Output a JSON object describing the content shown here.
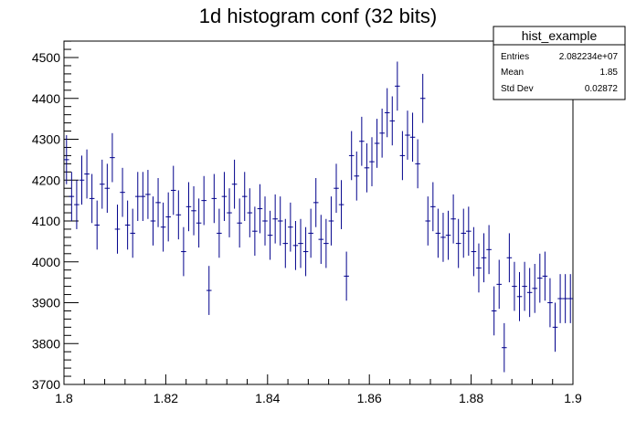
{
  "chart_data": {
    "type": "scatter",
    "title": "1d histogram conf (32 bits)",
    "xlabel": "",
    "ylabel": "",
    "xlim": [
      1.8,
      1.9
    ],
    "ylim": [
      3700,
      4550
    ],
    "x_ticks": [
      "1.8",
      "1.82",
      "1.84",
      "1.86",
      "1.88",
      "1.9"
    ],
    "y_ticks": [
      "3700",
      "3800",
      "3900",
      "4000",
      "4100",
      "4200",
      "4300",
      "4400",
      "4500"
    ],
    "grid": false,
    "legend": "none",
    "marker_color": "#00008b",
    "bin_width": 0.001,
    "error_half": 60,
    "x": [
      1.8005,
      1.8015,
      1.8025,
      1.8035,
      1.8045,
      1.8055,
      1.8065,
      1.8075,
      1.8085,
      1.8095,
      1.8105,
      1.8115,
      1.8125,
      1.8135,
      1.8145,
      1.8155,
      1.8165,
      1.8175,
      1.8185,
      1.8195,
      1.8205,
      1.8215,
      1.8225,
      1.8235,
      1.8245,
      1.8255,
      1.8265,
      1.8275,
      1.8285,
      1.8295,
      1.8305,
      1.8315,
      1.8325,
      1.8335,
      1.8345,
      1.8355,
      1.8365,
      1.8375,
      1.8385,
      1.8395,
      1.8405,
      1.8415,
      1.8425,
      1.8435,
      1.8445,
      1.8455,
      1.8465,
      1.8475,
      1.8485,
      1.8495,
      1.8505,
      1.8515,
      1.8525,
      1.8535,
      1.8545,
      1.8555,
      1.8565,
      1.8575,
      1.8585,
      1.8595,
      1.8605,
      1.8615,
      1.8625,
      1.8635,
      1.8645,
      1.8655,
      1.8665,
      1.8675,
      1.8685,
      1.8695,
      1.8705,
      1.8715,
      1.8725,
      1.8735,
      1.8745,
      1.8755,
      1.8765,
      1.8775,
      1.8785,
      1.8795,
      1.8805,
      1.8815,
      1.8825,
      1.8835,
      1.8845,
      1.8855,
      1.8865,
      1.8875,
      1.8885,
      1.8895,
      1.8905,
      1.8915,
      1.8925,
      1.8935,
      1.8945,
      1.8955,
      1.8965,
      1.8975,
      1.8985,
      1.8995
    ],
    "y": [
      4250,
      4160,
      4140,
      4200,
      4215,
      4155,
      4090,
      4190,
      4180,
      4255,
      4080,
      4170,
      4090,
      4070,
      4160,
      4160,
      4165,
      4100,
      4145,
      4085,
      4110,
      4175,
      4115,
      4025,
      4135,
      4125,
      4095,
      4150,
      3930,
      4155,
      4070,
      4160,
      4120,
      4190,
      4095,
      4160,
      4120,
      4075,
      4130,
      4100,
      4065,
      4105,
      4100,
      4045,
      4085,
      4040,
      4045,
      4025,
      4070,
      4145,
      4055,
      4045,
      4100,
      4180,
      4140,
      3965,
      4260,
      4210,
      4295,
      4230,
      4245,
      4290,
      4315,
      4365,
      4345,
      4430,
      4260,
      4310,
      4305,
      4240,
      4400,
      4100,
      4135,
      4070,
      4060,
      4065,
      4105,
      4045,
      4070,
      4075,
      4025,
      3985,
      4010,
      4030,
      3880,
      3945,
      3790,
      4010,
      3940,
      3915,
      3940,
      3925,
      3935,
      3960,
      3965,
      3900,
      3840,
      3910,
      3910,
      3910
    ]
  },
  "stats_box": {
    "title": "hist_example",
    "rows": [
      {
        "label": "Entries",
        "value": "2.082234e+07"
      },
      {
        "label": "Mean",
        "value": "1.85"
      },
      {
        "label": "Std Dev",
        "value": "0.02872"
      }
    ]
  }
}
